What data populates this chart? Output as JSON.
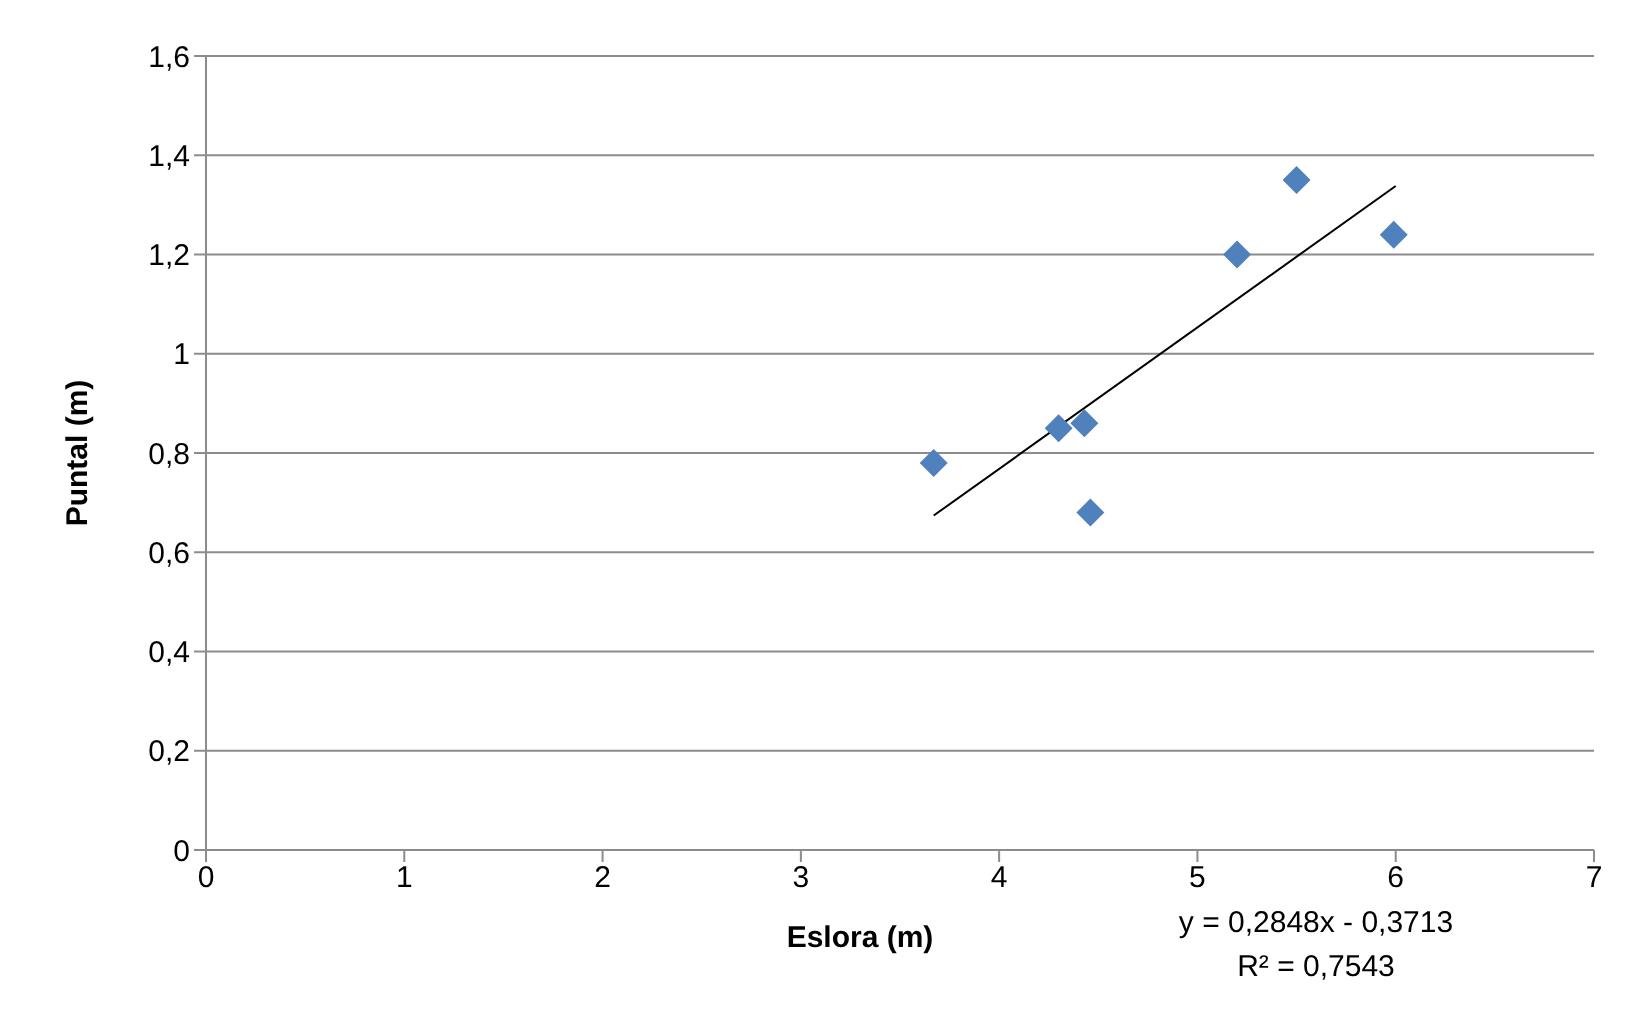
{
  "chart_data": {
    "type": "scatter",
    "xlabel": "Eslora (m)",
    "ylabel": "Puntal (m)",
    "series": [
      {
        "color": "#4f81bd",
        "x": [
          3.67,
          4.3,
          4.43,
          4.46,
          5.2,
          5.5,
          5.99
        ],
        "values": [
          0.78,
          0.85,
          0.86,
          0.68,
          1.2,
          1.35,
          1.24
        ],
        "marker": "diamond"
      },
      {
        "type": "line",
        "color": "#000000",
        "x": [
          3.67,
          6.0
        ],
        "values": [
          0.674,
          1.338
        ],
        "marker": "none"
      }
    ],
    "xlim": [
      0,
      7
    ],
    "xticks": [
      0,
      1,
      2,
      3,
      4,
      5,
      6,
      7
    ],
    "ylim": [
      0,
      1.6
    ],
    "yticks": [
      0,
      {
        "value": 0.2,
        "label": "0,2"
      },
      {
        "value": 0.4,
        "label": "0,4"
      },
      {
        "value": 0.6,
        "label": "0,6"
      },
      {
        "value": 0.8,
        "label": "0,8"
      },
      1,
      {
        "value": 1.2,
        "label": "1,2"
      },
      {
        "value": 1.4,
        "label": "1,4"
      },
      {
        "value": 1.6,
        "label": "1,6"
      }
    ],
    "grid": "y",
    "annotations": [
      "y = 0,2848x - 0,3713",
      "R² = 0,7543"
    ]
  }
}
